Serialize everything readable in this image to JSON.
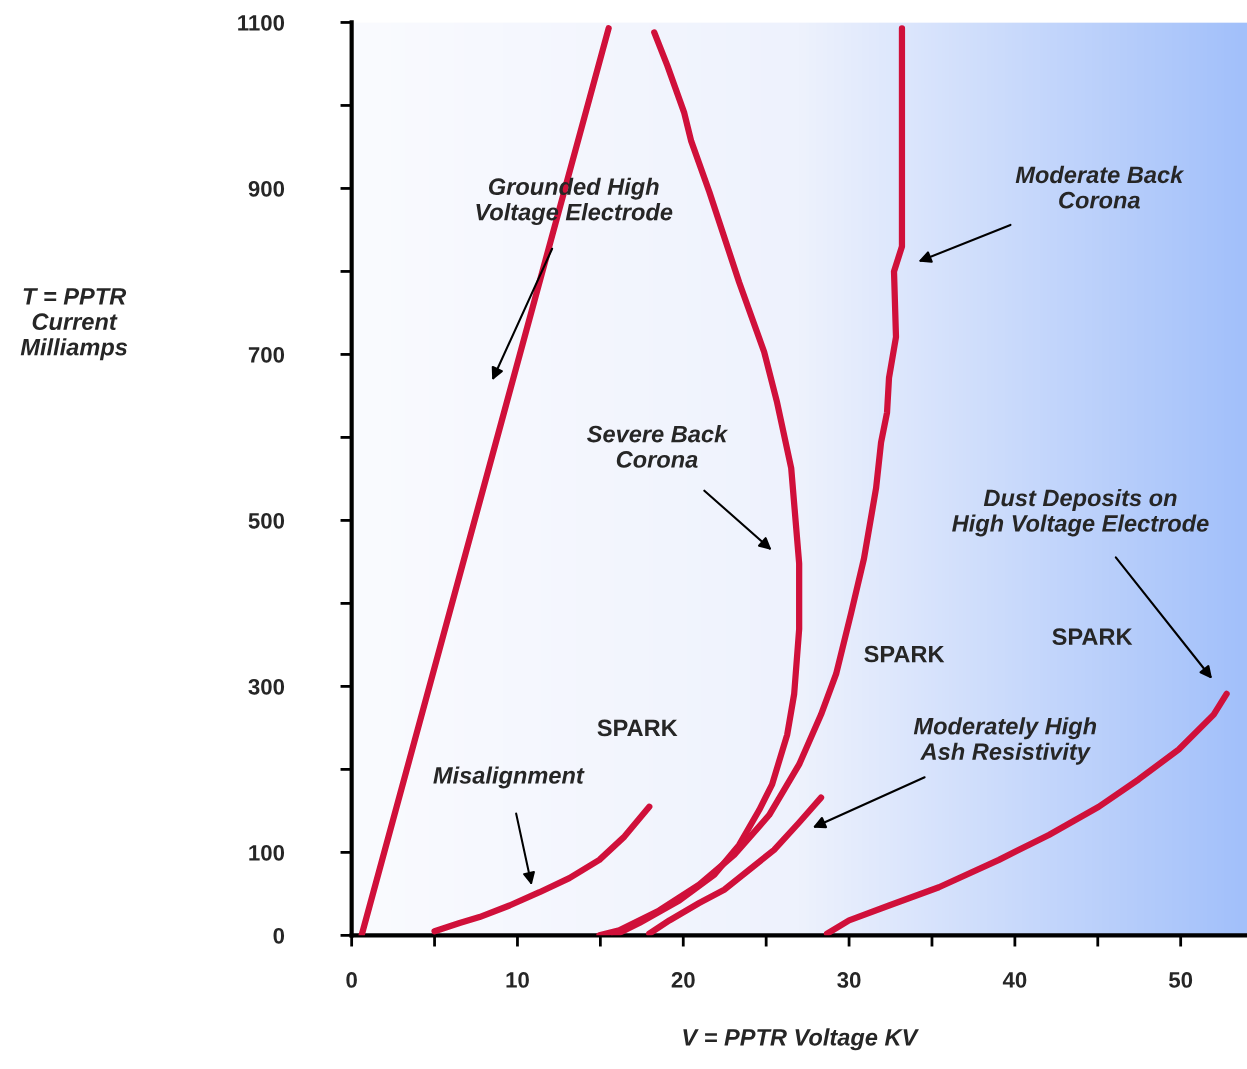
{
  "chart_data": {
    "type": "line",
    "xlabel": "V = PPTR Voltage KV",
    "ylabel": "T = PPTR\nCurrent\nMilliamps",
    "xlim": [
      0,
      54
    ],
    "ylim": [
      0,
      1100
    ],
    "xticks": [
      0,
      {
        "value": 5,
        "label": null
      },
      10,
      {
        "value": 15,
        "label": null
      },
      20,
      {
        "value": 25,
        "label": null
      },
      30,
      {
        "value": 35,
        "label": null
      },
      40,
      {
        "value": 45,
        "label": null
      },
      50
    ],
    "yticks": [
      0,
      100,
      {
        "value": 200,
        "label": null
      },
      300,
      {
        "value": 400,
        "label": null
      },
      500,
      {
        "value": 600,
        "label": null
      },
      700,
      {
        "value": 800,
        "label": null
      },
      900,
      {
        "value": 1000,
        "label": null
      },
      1100
    ],
    "grid": false,
    "marker": "none",
    "line_style": "solid",
    "series": [
      {
        "color": "#d0103a",
        "x": [
          0.6,
          15.5
        ],
        "values": [
          0,
          1093
        ]
      },
      {
        "color": "#d0103a",
        "x": [
          18.25,
          19.04,
          20.06,
          20.48,
          21.57,
          23.37,
          24.88,
          25.66,
          26.51,
          26.99,
          26.99,
          26.69,
          26.27,
          25.36,
          24.58,
          23.37,
          21.87,
          19.76,
          17.35,
          15.84
        ],
        "values": [
          1088,
          1048,
          991,
          957,
          896,
          787,
          703,
          642,
          563,
          448,
          369,
          291,
          242,
          182,
          151,
          109,
          73,
          42,
          15,
          0
        ]
      },
      {
        "color": "#d0103a",
        "x": [
          33.19,
          33.19,
          32.71,
          32.83,
          32.41,
          32.29,
          31.93,
          31.63,
          30.9,
          30.12,
          29.22,
          28.31,
          26.99,
          25.18,
          23.07,
          20.96,
          18.55,
          16.14,
          14.94
        ],
        "values": [
          1093,
          830,
          800,
          721,
          672,
          630,
          594,
          539,
          454,
          388,
          315,
          266,
          206,
          145,
          97,
          61,
          30,
          6,
          0
        ]
      },
      {
        "color": "#d0103a",
        "x": [
          17.95,
          19.16,
          20.96,
          22.47,
          23.98,
          25.48,
          26.99,
          28.31
        ],
        "values": [
          2,
          18,
          39,
          55,
          79,
          103,
          136,
          166
        ]
      },
      {
        "color": "#d0103a",
        "x": [
          5.0,
          6.51,
          7.71,
          9.52,
          11.33,
          13.13,
          14.94,
          16.45,
          17.95
        ],
        "values": [
          5,
          15,
          22,
          36,
          52,
          69,
          91,
          119,
          155
        ]
      },
      {
        "color": "#d0103a",
        "x": [
          28.67,
          30.0,
          32.41,
          35.42,
          39.04,
          42.05,
          45.06,
          47.47,
          49.88,
          51.99,
          52.77
        ],
        "values": [
          2,
          18,
          36,
          58,
          91,
          121,
          155,
          188,
          224,
          266,
          291
        ]
      }
    ],
    "annotations": [
      "Grounded High\nVoltage Electrode",
      "Severe Back\nCorona",
      "Moderate Back\nCorona",
      "Moderately High\nAsh Resistivity",
      "Dust Deposits on\nHigh Voltage Electrode",
      "Misalignment",
      "SPARK",
      "SPARK",
      "SPARK"
    ]
  }
}
